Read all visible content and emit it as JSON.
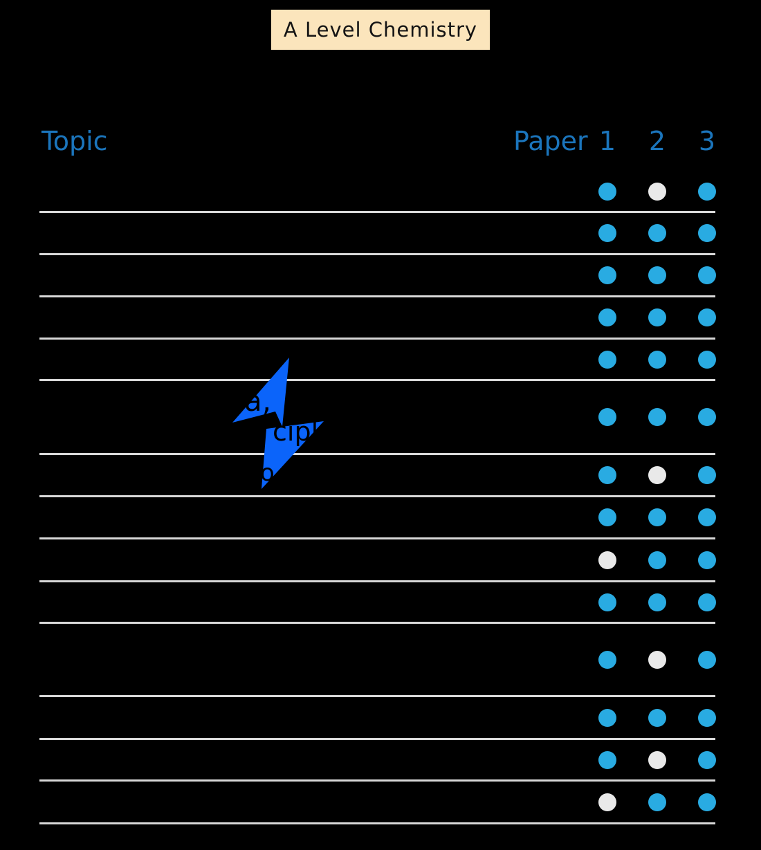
{
  "title": {
    "label": "A Level Chemistry"
  },
  "columns": {
    "topic": "Topic",
    "paper": "Paper",
    "numbers": [
      "1",
      "2",
      "3"
    ]
  },
  "colors": {
    "background": "#000000",
    "title_bg": "#FBE5BC",
    "title_text": "#141414",
    "header_text": "#1B75BC",
    "line": "#D8D8D8",
    "dot_filled": "#29ABE2",
    "dot_empty": "#E9E9E9",
    "bolt": "#0B64FA",
    "topic_text": "#000000"
  },
  "bolt": {
    "fragments": [
      {
        "text": "a,"
      },
      {
        "text": "cipl"
      },
      {
        "text": "o"
      }
    ]
  },
  "table": {
    "rows": [
      {
        "topic": "",
        "dots": [
          "filled",
          "empty",
          "filled"
        ]
      },
      {
        "topic": "",
        "dots": [
          "filled",
          "filled",
          "filled"
        ]
      },
      {
        "topic": "",
        "dots": [
          "filled",
          "filled",
          "filled"
        ]
      },
      {
        "topic": "",
        "dots": [
          "filled",
          "filled",
          "filled"
        ]
      },
      {
        "topic": "",
        "dots": [
          "filled",
          "filled",
          "filled"
        ]
      },
      {
        "topic": "",
        "dots": [
          "filled",
          "filled",
          "filled"
        ]
      },
      {
        "topic": "",
        "dots": [
          "filled",
          "empty",
          "filled"
        ]
      },
      {
        "topic": "",
        "dots": [
          "filled",
          "filled",
          "filled"
        ]
      },
      {
        "topic": "",
        "dots": [
          "empty",
          "filled",
          "filled"
        ]
      },
      {
        "topic": "",
        "dots": [
          "filled",
          "filled",
          "filled"
        ]
      },
      {
        "topic": "",
        "dots": [
          "filled",
          "empty",
          "filled"
        ]
      },
      {
        "topic": "",
        "dots": [
          "filled",
          "filled",
          "filled"
        ]
      },
      {
        "topic": "",
        "dots": [
          "filled",
          "empty",
          "filled"
        ]
      },
      {
        "topic": "",
        "dots": [
          "empty",
          "filled",
          "filled"
        ]
      }
    ]
  }
}
